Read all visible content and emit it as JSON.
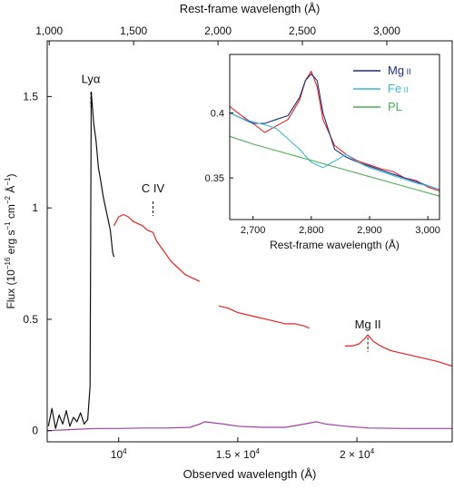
{
  "chart_data": [
    {
      "type": "line",
      "role": "main",
      "xlabel": "Observed wavelength (Å)",
      "ylabel_parts": [
        "Flux (10",
        "−16",
        " erg s",
        "−1",
        " cm",
        "−2",
        " Å",
        "−1",
        ")"
      ],
      "top_xlabel": "Rest-frame wavelength (Å)",
      "xlim": [
        7000,
        24000
      ],
      "ylim": [
        -0.05,
        1.75
      ],
      "bottom_ticks": [
        {
          "value": 10000,
          "base": "10",
          "exp": "4",
          "prefix": ""
        },
        {
          "value": 15000,
          "base": "10",
          "exp": "4",
          "prefix": "1.5 × "
        },
        {
          "value": 20000,
          "base": "10",
          "exp": "4",
          "prefix": "2 × "
        }
      ],
      "top_ticks": [
        {
          "value": 1000,
          "label": "1,000"
        },
        {
          "value": 1500,
          "label": "1,500"
        },
        {
          "value": 2000,
          "label": "2,000"
        },
        {
          "value": 2500,
          "label": "2,500"
        },
        {
          "value": 3000,
          "label": "3,000"
        }
      ],
      "rest_frame_factor": 7.085,
      "y_ticks": [
        {
          "value": 0,
          "label": "0"
        },
        {
          "value": 0.5,
          "label": "0.5"
        },
        {
          "value": 1,
          "label": "1"
        },
        {
          "value": 1.5,
          "label": "1.5"
        }
      ],
      "annotations": [
        {
          "text": "Lyα",
          "x": 8830,
          "y": 1.56
        },
        {
          "text": "C IV",
          "x": 11440,
          "y": 1.07
        },
        {
          "text": "Mg II",
          "x": 20460,
          "y": 0.46
        }
      ],
      "series": [
        {
          "color": "#111111",
          "points": [
            [
              7050,
              0.02
            ],
            [
              7200,
              0.1
            ],
            [
              7350,
              0.01
            ],
            [
              7500,
              0.07
            ],
            [
              7650,
              0.03
            ],
            [
              7800,
              0.09
            ],
            [
              7950,
              0.02
            ],
            [
              8100,
              0.06
            ],
            [
              8250,
              0.04
            ],
            [
              8400,
              0.08
            ],
            [
              8550,
              0.03
            ],
            [
              8700,
              0.05
            ],
            [
              8800,
              0.2
            ],
            [
              8850,
              1.52
            ],
            [
              8950,
              1.38
            ],
            [
              9050,
              1.3
            ],
            [
              9150,
              1.18
            ],
            [
              9250,
              1.12
            ],
            [
              9350,
              1.05
            ],
            [
              9450,
              1.0
            ],
            [
              9550,
              0.95
            ],
            [
              9650,
              0.9
            ],
            [
              9750,
              0.8
            ],
            [
              9800,
              0.78
            ]
          ]
        },
        {
          "color": "#e8231f",
          "points": [
            [
              9800,
              0.92
            ],
            [
              10000,
              0.96
            ],
            [
              10200,
              0.97
            ],
            [
              10400,
              0.96
            ],
            [
              10600,
              0.94
            ],
            [
              10800,
              0.93
            ],
            [
              11000,
              0.92
            ],
            [
              11200,
              0.9
            ],
            [
              11440,
              0.89
            ],
            [
              11600,
              0.85
            ],
            [
              11800,
              0.82
            ],
            [
              12000,
              0.79
            ],
            [
              12200,
              0.76
            ],
            [
              12400,
              0.74
            ],
            [
              12600,
              0.72
            ],
            [
              12800,
              0.7
            ],
            [
              13000,
              0.69
            ],
            [
              13200,
              0.68
            ],
            [
              13400,
              0.67
            ]
          ]
        },
        {
          "color": "#e8231f",
          "points": [
            [
              14200,
              0.56
            ],
            [
              14600,
              0.55
            ],
            [
              15000,
              0.53
            ],
            [
              15400,
              0.52
            ],
            [
              15800,
              0.51
            ],
            [
              16200,
              0.5
            ],
            [
              16600,
              0.49
            ],
            [
              17000,
              0.48
            ],
            [
              17400,
              0.48
            ],
            [
              17800,
              0.47
            ],
            [
              18000,
              0.46
            ]
          ]
        },
        {
          "color": "#e8231f",
          "points": [
            [
              19500,
              0.38
            ],
            [
              19800,
              0.38
            ],
            [
              20100,
              0.39
            ],
            [
              20300,
              0.41
            ],
            [
              20460,
              0.43
            ],
            [
              20700,
              0.4
            ],
            [
              21000,
              0.38
            ],
            [
              21400,
              0.36
            ],
            [
              21800,
              0.35
            ],
            [
              22200,
              0.34
            ],
            [
              22600,
              0.33
            ],
            [
              23000,
              0.32
            ],
            [
              23400,
              0.31
            ],
            [
              23700,
              0.3
            ],
            [
              24000,
              0.29
            ]
          ]
        },
        {
          "color": "#a23fa8",
          "points": [
            [
              7000,
              0.0
            ],
            [
              8000,
              0.005
            ],
            [
              9000,
              0.01
            ],
            [
              10000,
              0.01
            ],
            [
              11000,
              0.012
            ],
            [
              12000,
              0.012
            ],
            [
              13000,
              0.015
            ],
            [
              13400,
              0.03
            ],
            [
              13600,
              0.04
            ],
            [
              14000,
              0.035
            ],
            [
              14400,
              0.03
            ],
            [
              15000,
              0.02
            ],
            [
              16000,
              0.015
            ],
            [
              17000,
              0.015
            ],
            [
              17800,
              0.03
            ],
            [
              18300,
              0.04
            ],
            [
              18700,
              0.03
            ],
            [
              19500,
              0.02
            ],
            [
              20500,
              0.012
            ],
            [
              22000,
              0.01
            ],
            [
              24000,
              0.01
            ]
          ]
        }
      ]
    },
    {
      "type": "line",
      "role": "inset",
      "xlabel": "Rest-frame wavelength (Å)",
      "xlim": [
        2660,
        3020
      ],
      "ylim": [
        0.318,
        0.445
      ],
      "x_ticks": [
        {
          "value": 2700,
          "label": "2,700"
        },
        {
          "value": 2800,
          "label": "2,800"
        },
        {
          "value": 2900,
          "label": "2,900"
        },
        {
          "value": 3000,
          "label": "3,000"
        }
      ],
      "y_ticks": [
        {
          "value": 0.35,
          "label": "0.35"
        },
        {
          "value": 0.4,
          "label": "0.4"
        }
      ],
      "legend_position": "top-right",
      "legend": [
        {
          "name": "Mg",
          "sub": "II",
          "color": "#1a2e8a"
        },
        {
          "name": "Fe",
          "sub": "II",
          "color": "#35b8d6"
        },
        {
          "name": "PL",
          "sub": "",
          "color": "#4caf50"
        }
      ],
      "series": [
        {
          "color": "#e8231f",
          "points": [
            [
              2660,
              0.405
            ],
            [
              2680,
              0.398
            ],
            [
              2700,
              0.392
            ],
            [
              2720,
              0.385
            ],
            [
              2740,
              0.39
            ],
            [
              2760,
              0.395
            ],
            [
              2780,
              0.41
            ],
            [
              2790,
              0.425
            ],
            [
              2800,
              0.432
            ],
            [
              2810,
              0.42
            ],
            [
              2820,
              0.395
            ],
            [
              2840,
              0.375
            ],
            [
              2860,
              0.368
            ],
            [
              2880,
              0.363
            ],
            [
              2900,
              0.36
            ],
            [
              2920,
              0.357
            ],
            [
              2940,
              0.355
            ],
            [
              2960,
              0.35
            ],
            [
              2980,
              0.348
            ],
            [
              3000,
              0.343
            ],
            [
              3020,
              0.34
            ]
          ]
        },
        {
          "color": "#1a2e8a",
          "points": [
            [
              2660,
              0.4
            ],
            [
              2680,
              0.396
            ],
            [
              2700,
              0.392
            ],
            [
              2720,
              0.392
            ],
            [
              2740,
              0.395
            ],
            [
              2760,
              0.398
            ],
            [
              2780,
              0.412
            ],
            [
              2790,
              0.425
            ],
            [
              2800,
              0.43
            ],
            [
              2810,
              0.425
            ],
            [
              2820,
              0.4
            ],
            [
              2840,
              0.372
            ],
            [
              2860,
              0.366
            ],
            [
              2880,
              0.362
            ],
            [
              2900,
              0.359
            ],
            [
              2920,
              0.356
            ],
            [
              2940,
              0.353
            ],
            [
              2960,
              0.35
            ],
            [
              2980,
              0.347
            ],
            [
              3000,
              0.344
            ],
            [
              3020,
              0.341
            ]
          ]
        },
        {
          "color": "#35b8d6",
          "points": [
            [
              2660,
              0.4
            ],
            [
              2680,
              0.396
            ],
            [
              2700,
              0.393
            ],
            [
              2720,
              0.391
            ],
            [
              2740,
              0.388
            ],
            [
              2760,
              0.38
            ],
            [
              2780,
              0.372
            ],
            [
              2800,
              0.362
            ],
            [
              2820,
              0.358
            ],
            [
              2840,
              0.363
            ],
            [
              2860,
              0.368
            ],
            [
              2880,
              0.362
            ],
            [
              2900,
              0.358
            ],
            [
              2920,
              0.355
            ],
            [
              2940,
              0.352
            ],
            [
              2960,
              0.349
            ],
            [
              2980,
              0.346
            ],
            [
              3000,
              0.344
            ],
            [
              3020,
              0.341
            ]
          ]
        },
        {
          "color": "#4caf50",
          "points": [
            [
              2660,
              0.382
            ],
            [
              2700,
              0.376
            ],
            [
              2740,
              0.371
            ],
            [
              2780,
              0.366
            ],
            [
              2820,
              0.361
            ],
            [
              2860,
              0.356
            ],
            [
              2900,
              0.351
            ],
            [
              2940,
              0.346
            ],
            [
              2980,
              0.341
            ],
            [
              3020,
              0.336
            ]
          ]
        }
      ]
    }
  ]
}
